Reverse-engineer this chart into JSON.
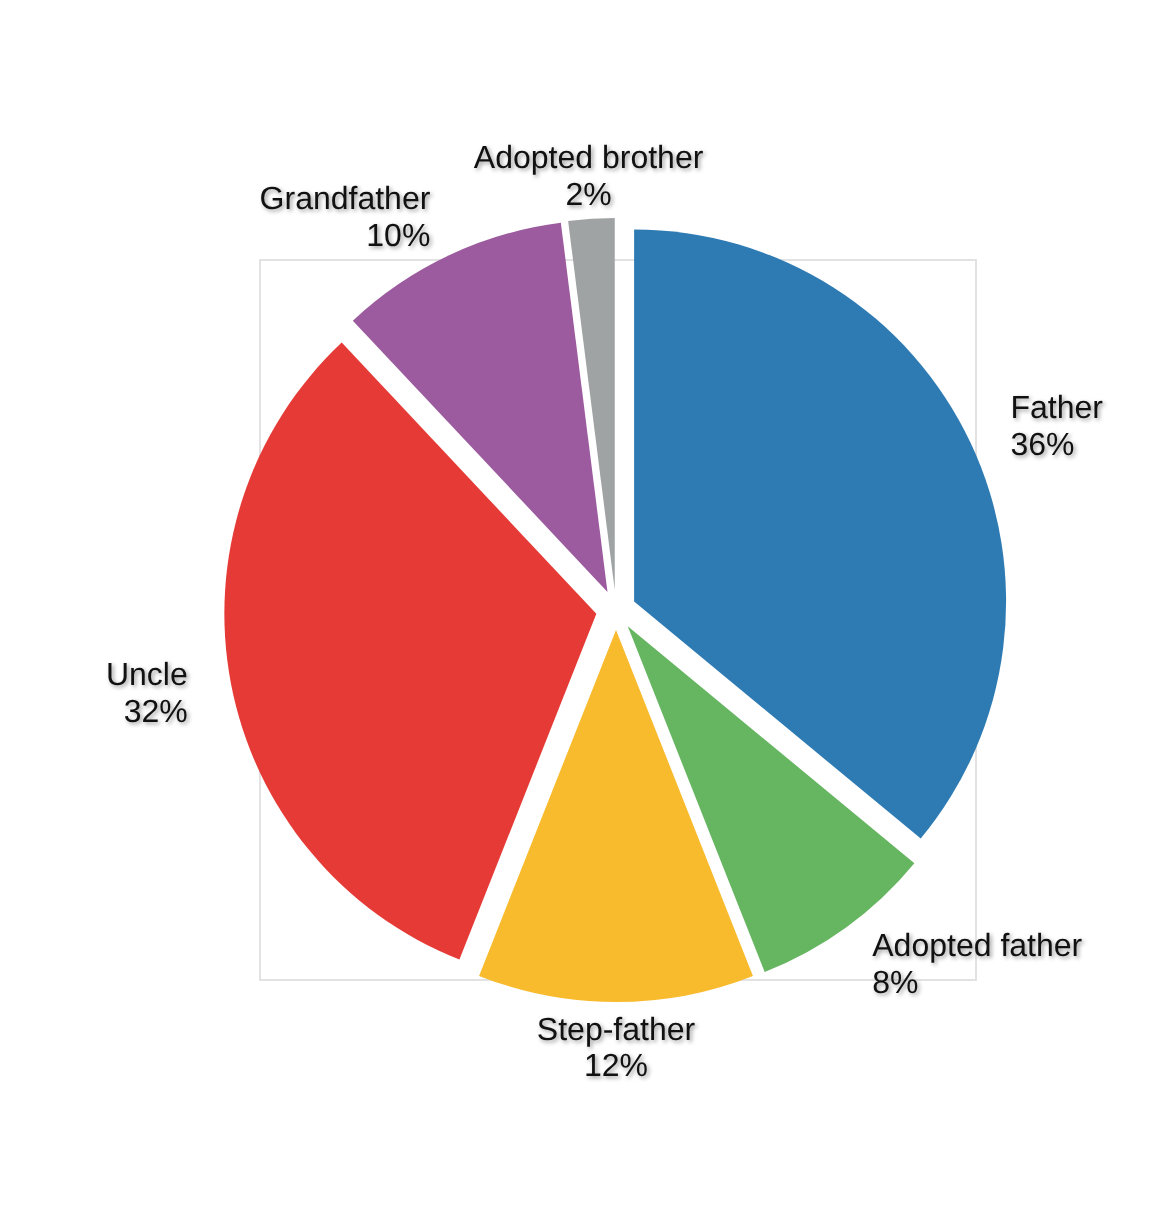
{
  "chart_data": {
    "type": "pie",
    "categories": [
      "Father",
      "Adopted father",
      "Step-father",
      "Uncle",
      "Grandfather",
      "Adopted brother"
    ],
    "values": [
      36,
      8,
      12,
      32,
      10,
      2
    ],
    "value_labels": [
      "36%",
      "8%",
      "12%",
      "32%",
      "10%",
      "2%"
    ],
    "colors": [
      "#2e7bb4",
      "#66b561",
      "#f8bb2e",
      "#e53a35",
      "#9b5b9e",
      "#9fa3a3"
    ]
  }
}
